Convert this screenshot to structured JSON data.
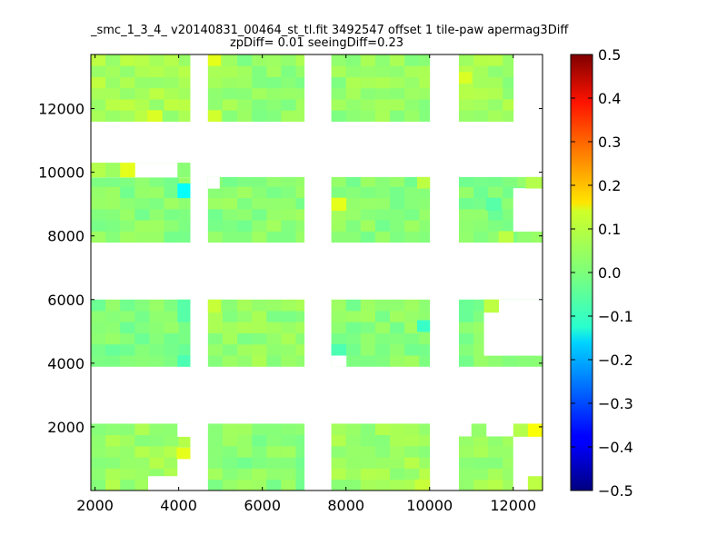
{
  "chart_data": {
    "type": "heatmap",
    "title_line1": "_smc_1_3_4_ v20140831_00464_st_tl.fit 3492547 offset 1 tile-paw apermag3Diff",
    "title_line2": "zpDiff= 0.01 seeingDiff=0.23",
    "xlabel": "",
    "ylabel": "",
    "xlim": [
      1900,
      12700
    ],
    "ylim": [
      0,
      13700
    ],
    "x_ticks": [
      2000,
      4000,
      6000,
      8000,
      10000,
      12000
    ],
    "y_ticks": [
      2000,
      4000,
      6000,
      8000,
      10000,
      12000
    ],
    "colorbar": {
      "colormap": "jet",
      "range": [
        -0.5,
        0.5
      ],
      "ticks": [
        0.5,
        0.4,
        0.3,
        0.2,
        0.1,
        0.0,
        -0.1,
        -0.2,
        -0.3,
        -0.4,
        -0.5
      ],
      "tick_labels": [
        "0.5",
        "0.4",
        "0.3",
        "0.2",
        "0.1",
        "0.0",
        "−0.1",
        "−0.2",
        "−0.3",
        "−0.4",
        "−0.5"
      ]
    },
    "cell_size": [
      350,
      350
    ],
    "regions": [
      {
        "x": [
          1900,
          4270
        ],
        "y": [
          0,
          2100
        ],
        "value": 0.03
      },
      {
        "x": [
          4700,
          7000
        ],
        "y": [
          0,
          2100
        ],
        "value": 0.01
      },
      {
        "x": [
          7650,
          10000
        ],
        "y": [
          0,
          2100
        ],
        "value": 0.03
      },
      {
        "x": [
          10700,
          12700
        ],
        "y": [
          0,
          1700
        ],
        "value": 0.03
      },
      {
        "x": [
          1900,
          4270
        ],
        "y": [
          3900,
          6000
        ],
        "value": 0.0
      },
      {
        "x": [
          4700,
          7000
        ],
        "y": [
          3900,
          6000
        ],
        "value": 0.02
      },
      {
        "x": [
          7650,
          10000
        ],
        "y": [
          3900,
          6000
        ],
        "value": 0.01
      },
      {
        "x": [
          10700,
          12700
        ],
        "y": [
          3900,
          6000
        ],
        "value": 0.0
      },
      {
        "x": [
          1900,
          4270
        ],
        "y": [
          7800,
          10300
        ],
        "value": 0.01
      },
      {
        "x": [
          4700,
          7000
        ],
        "y": [
          7800,
          9850
        ],
        "value": 0.01
      },
      {
        "x": [
          7650,
          10000
        ],
        "y": [
          7800,
          9850
        ],
        "value": 0.01
      },
      {
        "x": [
          10700,
          12700
        ],
        "y": [
          7800,
          9850
        ],
        "value": 0.0
      },
      {
        "x": [
          1900,
          4270
        ],
        "y": [
          11600,
          13700
        ],
        "value": 0.04
      },
      {
        "x": [
          4700,
          7000
        ],
        "y": [
          11600,
          13700
        ],
        "value": 0.02
      },
      {
        "x": [
          7650,
          10000
        ],
        "y": [
          11600,
          13700
        ],
        "value": 0.02
      },
      {
        "x": [
          10700,
          12000
        ],
        "y": [
          11600,
          13700
        ],
        "value": 0.03
      }
    ],
    "holes": [
      {
        "x": [
          3270,
          4270
        ],
        "y": [
          0,
          450
        ]
      },
      {
        "x": [
          3970,
          4270
        ],
        "y": [
          450,
          1350
        ]
      },
      {
        "x": [
          3970,
          4270
        ],
        "y": [
          1700,
          2100
        ]
      },
      {
        "x": [
          12000,
          12700
        ],
        "y": [
          0,
          1700
        ]
      },
      {
        "x": [
          7650,
          8000
        ],
        "y": [
          3900,
          4250
        ]
      },
      {
        "x": [
          11300,
          12700
        ],
        "y": [
          4250,
          5600
        ]
      },
      {
        "x": [
          11650,
          12700
        ],
        "y": [
          5600,
          6000
        ]
      },
      {
        "x": [
          4700,
          4970
        ],
        "y": [
          9500,
          9850
        ]
      },
      {
        "x": [
          12000,
          12700
        ],
        "y": [
          8150,
          9500
        ]
      },
      {
        "x": [
          1900,
          4270
        ],
        "y": [
          9850,
          10300
        ]
      }
    ],
    "extra_cells": [
      {
        "x": [
          11000,
          11350
        ],
        "y": [
          1700,
          2100
        ],
        "value": 0.02
      },
      {
        "x": [
          12000,
          12350
        ],
        "y": [
          1700,
          2100
        ],
        "value": 0.05
      },
      {
        "x": [
          12350,
          12700
        ],
        "y": [
          1700,
          2100
        ],
        "value": 0.12
      },
      {
        "x": [
          1900,
          2250
        ],
        "y": [
          9850,
          10300
        ],
        "value": 0.05
      },
      {
        "x": [
          2250,
          2600
        ],
        "y": [
          9850,
          10300
        ],
        "value": 0.03
      },
      {
        "x": [
          2600,
          2950
        ],
        "y": [
          9850,
          10300
        ],
        "value": 0.1
      },
      {
        "x": [
          3970,
          4270
        ],
        "y": [
          9850,
          10300
        ],
        "value": 0.01
      }
    ],
    "outliers": [
      {
        "x": [
          3970,
          4270
        ],
        "y": [
          9200,
          9650
        ],
        "value": -0.12
      },
      {
        "x": [
          3970,
          4270
        ],
        "y": [
          3900,
          4250
        ],
        "value": -0.05
      },
      {
        "x": [
          3970,
          4270
        ],
        "y": [
          5300,
          6000
        ],
        "value": -0.04
      },
      {
        "x": [
          9700,
          10000
        ],
        "y": [
          5000,
          5350
        ],
        "value": -0.07
      },
      {
        "x": [
          7650,
          8000
        ],
        "y": [
          4250,
          4600
        ],
        "value": -0.05
      },
      {
        "x": [
          7650,
          8000
        ],
        "y": [
          8800,
          9200
        ],
        "value": 0.1
      },
      {
        "x": [
          3950,
          4270
        ],
        "y": [
          1000,
          1350
        ],
        "value": 0.1
      },
      {
        "x": [
          11350,
          11700
        ],
        "y": [
          8800,
          9200
        ],
        "value": -0.04
      },
      {
        "x": [
          4700,
          5000
        ],
        "y": [
          13350,
          13700
        ],
        "value": 0.1
      },
      {
        "x": [
          4700,
          5000
        ],
        "y": [
          11600,
          11950
        ],
        "value": 0.08
      },
      {
        "x": [
          3250,
          3600
        ],
        "y": [
          11600,
          11950
        ],
        "value": 0.09
      },
      {
        "x": [
          4700,
          5000
        ],
        "y": [
          5600,
          6000
        ],
        "value": 0.07
      },
      {
        "x": [
          10700,
          11000
        ],
        "y": [
          12800,
          13150
        ],
        "value": 0.09
      },
      {
        "x": [
          9700,
          10000
        ],
        "y": [
          9500,
          9850
        ],
        "value": 0.06
      },
      {
        "x": [
          12300,
          12700
        ],
        "y": [
          9500,
          9850
        ],
        "value": 0.05
      },
      {
        "x": [
          11650,
          12000
        ],
        "y": [
          7800,
          8150
        ],
        "value": 0.06
      },
      {
        "x": [
          11300,
          11650
        ],
        "y": [
          5600,
          6000
        ],
        "value": 0.06
      },
      {
        "x": [
          9650,
          10000
        ],
        "y": [
          0,
          350
        ],
        "value": 0.07
      },
      {
        "x": [
          12350,
          12700
        ],
        "y": [
          0,
          450
        ],
        "value": 0.06
      }
    ]
  }
}
